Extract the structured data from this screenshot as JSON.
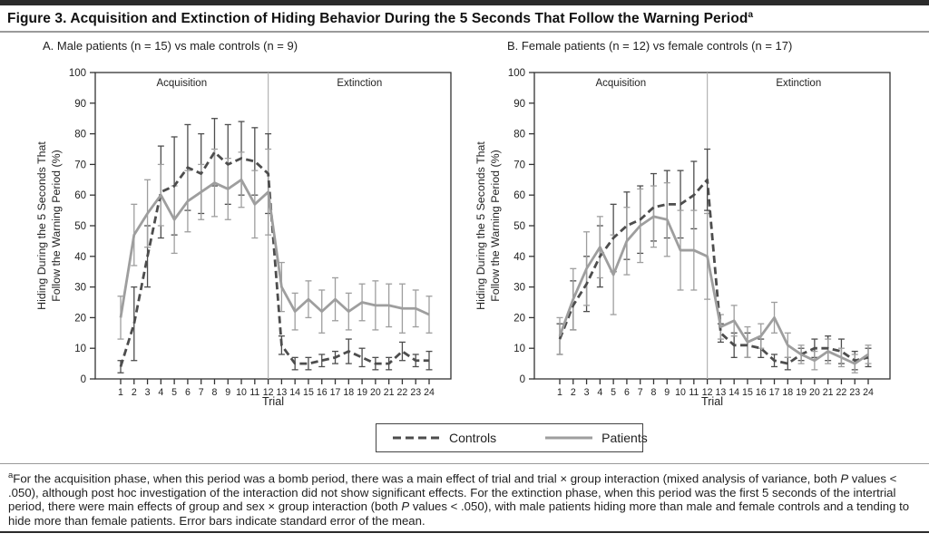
{
  "header": {
    "title": "Figure 3. Acquisition and Extinction of Hiding Behavior During the 5 Seconds That Follow the Warning Period",
    "title_superscript": "a"
  },
  "legend": {
    "controls_label": "Controls",
    "patients_label": "Patients"
  },
  "colors": {
    "controls": "#4d4d4d",
    "patients": "#9e9e9e",
    "divider": "#b3b3b3",
    "axis": "#333333",
    "text": "#222222"
  },
  "chart_data": [
    {
      "type": "line",
      "panel_label": "A",
      "title": "A. Male patients (n = 15) vs male controls (n = 9)",
      "xlabel": "Trial",
      "ylabel": "Hiding During the 5 Seconds That Follow the Warning Period (%)",
      "ylabel_lines": [
        "Hiding During the 5 Seconds That",
        "Follow the Warning Period (%)"
      ],
      "ylim": [
        0,
        100
      ],
      "yticks": [
        0,
        10,
        20,
        30,
        40,
        50,
        60,
        70,
        80,
        90,
        100
      ],
      "x": [
        1,
        2,
        3,
        4,
        5,
        6,
        7,
        8,
        9,
        10,
        11,
        12,
        13,
        14,
        15,
        16,
        17,
        18,
        19,
        20,
        21,
        22,
        23,
        24
      ],
      "phase_divider_x": 12,
      "phase_labels": [
        "Acquisition",
        "Extinction"
      ],
      "series": [
        {
          "name": "Controls",
          "style": "dashed",
          "values": [
            4,
            18,
            40,
            61,
            63,
            69,
            67,
            74,
            70,
            72,
            71,
            67,
            11,
            5,
            5,
            6,
            7,
            9,
            7,
            5,
            5,
            9,
            6,
            6
          ],
          "stderr": [
            2,
            12,
            10,
            15,
            16,
            14,
            13,
            11,
            13,
            12,
            11,
            13,
            3,
            2,
            2,
            2,
            2,
            4,
            3,
            2,
            2,
            3,
            2,
            3
          ]
        },
        {
          "name": "Patients",
          "style": "solid",
          "values": [
            20,
            47,
            54,
            60,
            52,
            58,
            61,
            64,
            62,
            65,
            57,
            61,
            30,
            22,
            26,
            22,
            26,
            22,
            25,
            24,
            24,
            23,
            23,
            21
          ],
          "stderr": [
            7,
            10,
            11,
            10,
            11,
            10,
            9,
            11,
            10,
            9,
            11,
            14,
            8,
            6,
            6,
            7,
            7,
            6,
            6,
            8,
            7,
            8,
            6,
            6
          ]
        }
      ]
    },
    {
      "type": "line",
      "panel_label": "B",
      "title": "B. Female patients (n = 12) vs female controls (n = 17)",
      "xlabel": "Trial",
      "ylabel": "Hiding During the 5 Seconds That Follow the Warning Period (%)",
      "ylabel_lines": [
        "Hiding During the 5 Seconds That",
        "Follow the Warning Period (%)"
      ],
      "ylim": [
        0,
        100
      ],
      "yticks": [
        0,
        10,
        20,
        30,
        40,
        50,
        60,
        70,
        80,
        90,
        100
      ],
      "x": [
        1,
        2,
        3,
        4,
        5,
        6,
        7,
        8,
        9,
        10,
        11,
        12,
        13,
        14,
        15,
        16,
        17,
        18,
        19,
        20,
        21,
        22,
        23,
        24
      ],
      "phase_divider_x": 12,
      "phase_labels": [
        "Acquisition",
        "Extinction"
      ],
      "series": [
        {
          "name": "Controls",
          "style": "dashed",
          "values": [
            13,
            24,
            31,
            40,
            46,
            50,
            52,
            56,
            57,
            57,
            60,
            65,
            15,
            11,
            11,
            10,
            6,
            5,
            8,
            10,
            10,
            9,
            6,
            7
          ],
          "stderr": [
            5,
            8,
            9,
            10,
            11,
            11,
            11,
            11,
            11,
            11,
            11,
            10,
            3,
            4,
            4,
            3,
            2,
            2,
            2,
            3,
            4,
            4,
            3,
            3
          ]
        },
        {
          "name": "Patients",
          "style": "solid",
          "values": [
            14,
            26,
            36,
            43,
            34,
            45,
            50,
            53,
            52,
            42,
            42,
            40,
            17,
            19,
            12,
            14,
            20,
            11,
            8,
            6,
            9,
            7,
            5,
            8
          ],
          "stderr": [
            6,
            10,
            12,
            10,
            13,
            11,
            12,
            10,
            12,
            13,
            13,
            14,
            4,
            5,
            5,
            4,
            5,
            4,
            3,
            3,
            4,
            3,
            3,
            3
          ]
        }
      ]
    }
  ],
  "footnote": {
    "marker": "a",
    "segments": [
      {
        "text": "For the acquisition phase, when this period was a bomb period, there was a main effect of trial and trial × group interaction (mixed analysis of variance, both ",
        "italic": false
      },
      {
        "text": "P",
        "italic": true
      },
      {
        "text": " values < .050), although post hoc investigation of the interaction did not show significant effects. For the extinction phase, when this period was the first 5 seconds of the intertrial period, there were main effects of group and sex × group interaction (both ",
        "italic": false
      },
      {
        "text": "P",
        "italic": true
      },
      {
        "text": " values < .050), with male patients hiding more than male and female controls and a tending to hide more than female patients. Error bars indicate standard error of the mean.",
        "italic": false
      }
    ]
  }
}
